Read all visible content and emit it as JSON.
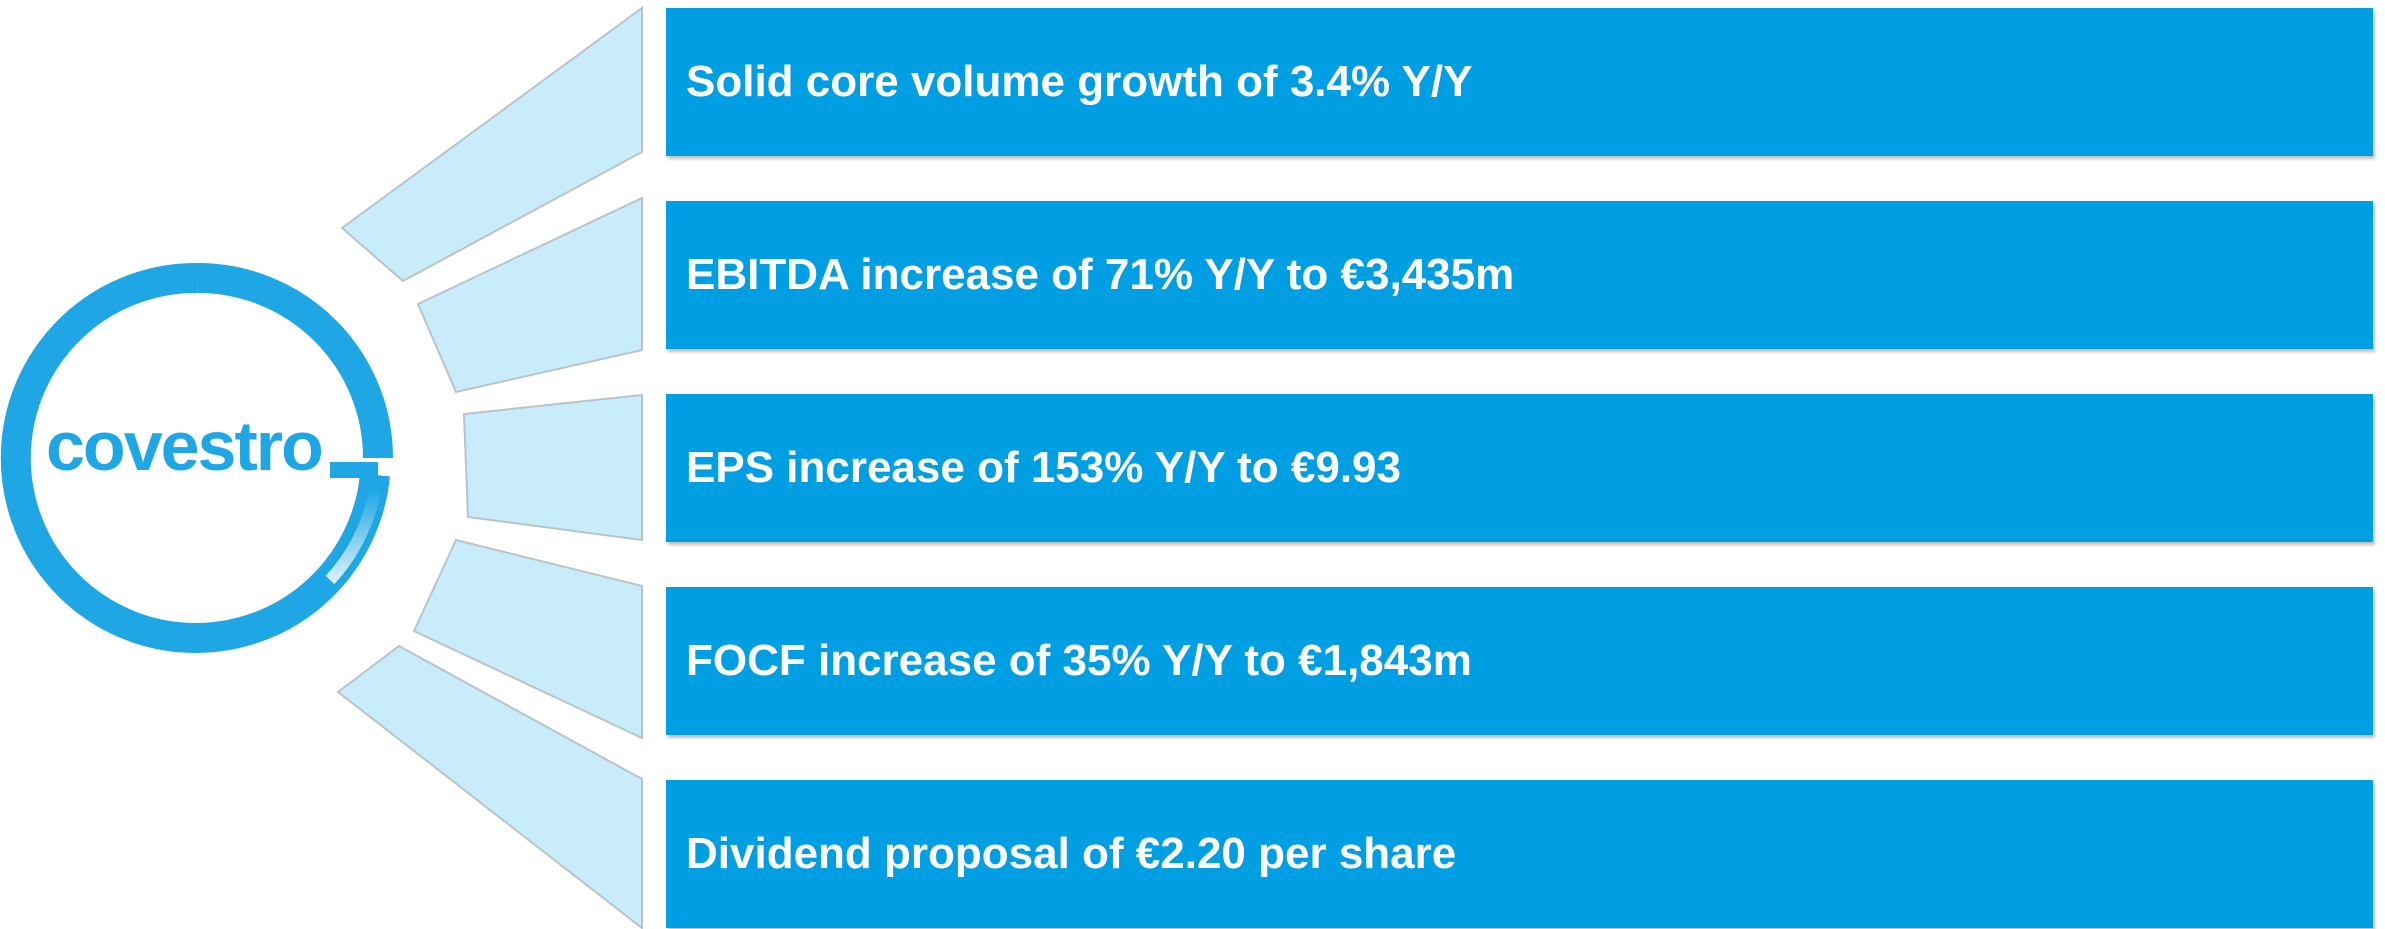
{
  "logo": {
    "text": "covestro"
  },
  "items": [
    "Solid core volume growth of 3.4% Y/Y",
    "EBITDA increase of 71% Y/Y to €3,435m",
    "EPS increase of 153% Y/Y to €9.93",
    "FOCF increase of 35% Y/Y to €1,843m",
    "Dividend proposal of €2.20 per share"
  ]
}
